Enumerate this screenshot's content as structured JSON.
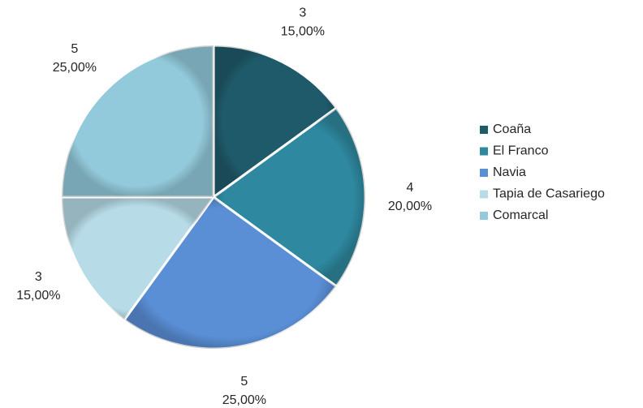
{
  "chart_data": {
    "type": "pie",
    "categories": [
      "Coaña",
      "El Franco",
      "Navia",
      "Tapia de Casariego",
      "Comarcal"
    ],
    "values": [
      3,
      4,
      5,
      3,
      5
    ],
    "percentages": [
      15,
      20,
      25,
      15,
      25
    ],
    "percentage_labels": [
      "15,00%",
      "20,00%",
      "25,00%",
      "15,00%",
      "25,00%"
    ],
    "colors": [
      "#1f5a6a",
      "#2e889f",
      "#5a8fd6",
      "#b7dce7",
      "#93cadb"
    ],
    "legend": "right"
  }
}
